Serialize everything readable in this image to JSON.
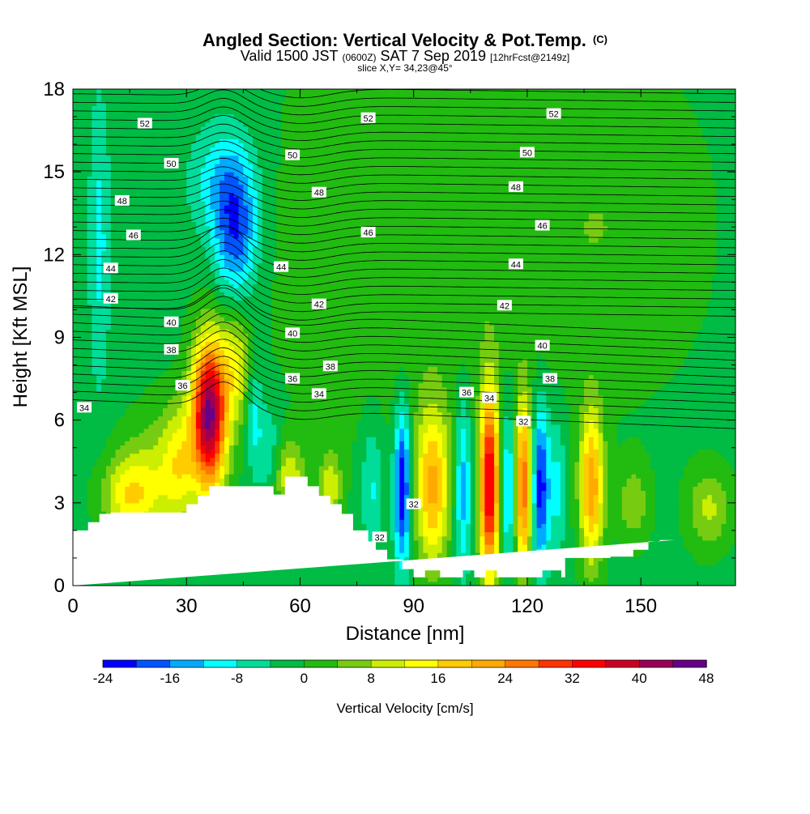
{
  "header": {
    "title_main": "Angled Section: Vertical Velocity & Pot.Temp.",
    "title_c": "(C)",
    "valid_a": "Valid 1500 JST",
    "valid_b": "(0600Z)",
    "valid_c": "SAT 7 Sep 2019",
    "valid_d": "[12hrFcst@2149z]",
    "slice": "slice X,Y= 34,23@45°"
  },
  "chart_data": {
    "type": "heatmap",
    "title": "Angled Section: Vertical Velocity & Pot.Temp.",
    "xlabel": "Distance [nm]",
    "ylabel": "Height [Kft MSL]",
    "xlim": [
      0,
      175
    ],
    "ylim": [
      0,
      18
    ],
    "x_ticks": [
      0,
      30,
      60,
      90,
      120,
      150
    ],
    "y_ticks": [
      0,
      3,
      6,
      9,
      12,
      15,
      18
    ],
    "grid": false,
    "colorbar": {
      "label": "Vertical Velocity [cm/s]",
      "min": -24,
      "max": 48,
      "step": 4,
      "tick_labels": [
        "-24",
        "-16",
        "-8",
        "0",
        "8",
        "16",
        "24",
        "32",
        "40",
        "48"
      ],
      "colors": [
        "#0000ff",
        "#0055ff",
        "#00aaff",
        "#00ffff",
        "#00dd99",
        "#00bb44",
        "#22bb11",
        "#77cc11",
        "#ccee00",
        "#ffff00",
        "#ffcc00",
        "#ffaa00",
        "#ff7700",
        "#ff3300",
        "#ff0000",
        "#cc0022",
        "#990055",
        "#660088"
      ]
    },
    "terrain_profile": {
      "x": [
        0,
        4,
        4,
        7,
        7,
        10,
        10,
        30,
        30,
        33,
        33,
        36,
        36,
        53,
        53,
        56,
        56,
        62,
        62,
        65,
        65,
        68,
        68,
        71,
        71,
        74,
        74,
        78,
        78,
        80,
        80,
        83,
        83,
        87,
        87,
        90,
        90,
        93,
        93,
        97,
        97,
        103,
        103,
        106,
        106,
        109,
        109,
        112,
        112,
        124,
        124,
        129,
        129,
        130,
        130,
        142,
        142,
        148,
        148,
        152,
        152,
        155,
        155,
        159,
        159,
        175
      ],
      "y": [
        2,
        2,
        2.3,
        2.3,
        2.6,
        2.6,
        2.65,
        2.65,
        2.95,
        2.95,
        3.25,
        3.25,
        3.6,
        3.6,
        3.3,
        3.3,
        3.95,
        3.95,
        3.6,
        3.6,
        3.25,
        3.25,
        2.95,
        2.95,
        2.6,
        2.6,
        2,
        2,
        1.6,
        1.6,
        1.3,
        1.3,
        0.95,
        0.95,
        0.6,
        0.6,
        0.3,
        0.3,
        0.55,
        0.55,
        0.3,
        0.3,
        0.55,
        0.55,
        0.3,
        0.3,
        0.55,
        0.55,
        0.3,
        0.3,
        0.55,
        0.55,
        0.3,
        0.3,
        1,
        1,
        1.05,
        1.05,
        1.3,
        1.3,
        1.6,
        1.6,
        1.65,
        1.65
      ]
    },
    "theta_labels": [
      {
        "text": "52",
        "x": 19,
        "y": 16.75
      },
      {
        "text": "52",
        "x": 78,
        "y": 16.95
      },
      {
        "text": "52",
        "x": 127,
        "y": 17.1
      },
      {
        "text": "50",
        "x": 26,
        "y": 15.3
      },
      {
        "text": "50",
        "x": 58,
        "y": 15.6
      },
      {
        "text": "50",
        "x": 120,
        "y": 15.7
      },
      {
        "text": "48",
        "x": 13,
        "y": 13.95
      },
      {
        "text": "48",
        "x": 65,
        "y": 14.25
      },
      {
        "text": "48",
        "x": 117,
        "y": 14.45
      },
      {
        "text": "46",
        "x": 16,
        "y": 12.7
      },
      {
        "text": "46",
        "x": 78,
        "y": 12.8
      },
      {
        "text": "46",
        "x": 124,
        "y": 13.05
      },
      {
        "text": "44",
        "x": 10,
        "y": 11.5
      },
      {
        "text": "44",
        "x": 55,
        "y": 11.55
      },
      {
        "text": "44",
        "x": 117,
        "y": 11.65
      },
      {
        "text": "42",
        "x": 10,
        "y": 10.4
      },
      {
        "text": "42",
        "x": 65,
        "y": 10.2
      },
      {
        "text": "42",
        "x": 114,
        "y": 10.15
      },
      {
        "text": "40",
        "x": 26,
        "y": 9.55
      },
      {
        "text": "40",
        "x": 58,
        "y": 9.15
      },
      {
        "text": "40",
        "x": 124,
        "y": 8.7
      },
      {
        "text": "38",
        "x": 26,
        "y": 8.55
      },
      {
        "text": "38",
        "x": 68,
        "y": 7.95
      },
      {
        "text": "38",
        "x": 126,
        "y": 7.5
      },
      {
        "text": "36",
        "x": 29,
        "y": 7.25
      },
      {
        "text": "36",
        "x": 58,
        "y": 7.5
      },
      {
        "text": "36",
        "x": 104,
        "y": 7.0
      },
      {
        "text": "34",
        "x": 3,
        "y": 6.45
      },
      {
        "text": "34",
        "x": 65,
        "y": 6.95
      },
      {
        "text": "34",
        "x": 110,
        "y": 6.8
      },
      {
        "text": "32",
        "x": 119,
        "y": 5.95
      },
      {
        "text": "32",
        "x": 90,
        "y": 2.95
      },
      {
        "text": "32",
        "x": 81,
        "y": 1.75
      }
    ],
    "velocity_features": [
      {
        "x": 36,
        "y": 6.2,
        "peak": 46,
        "sx": 3.2,
        "sy": 1.9
      },
      {
        "x": 43,
        "y": 8.0,
        "peak": 12,
        "sx": 3,
        "sy": 1.5
      },
      {
        "x": 28,
        "y": 4.5,
        "peak": 10,
        "sx": 3,
        "sy": 1.5
      },
      {
        "x": 15,
        "y": 3.3,
        "peak": 16,
        "sx": 5,
        "sy": 1.1
      },
      {
        "x": 24,
        "y": 4.2,
        "peak": 8,
        "sx": 6,
        "sy": 1.6
      },
      {
        "x": 43,
        "y": 12.8,
        "peak": -17,
        "sx": 4,
        "sy": 1.8
      },
      {
        "x": 39,
        "y": 14.7,
        "peak": -9,
        "sx": 6,
        "sy": 1.5
      },
      {
        "x": 7,
        "y": 12.5,
        "peak": -8,
        "sx": 2,
        "sy": 3.8
      },
      {
        "x": 48,
        "y": 6.2,
        "peak": -9,
        "sx": 1.5,
        "sy": 1.5
      },
      {
        "x": 52,
        "y": 4.8,
        "peak": -7,
        "sx": 2,
        "sy": 1.2
      },
      {
        "x": 57,
        "y": 4.0,
        "peak": 12,
        "sx": 3,
        "sy": 0.9
      },
      {
        "x": 68,
        "y": 3.6,
        "peak": 12,
        "sx": 2,
        "sy": 0.9
      },
      {
        "x": 79,
        "y": 3.6,
        "peak": -8,
        "sx": 2,
        "sy": 1.8
      },
      {
        "x": 87,
        "y": 3.6,
        "peak": -24,
        "sx": 1.5,
        "sy": 2.0
      },
      {
        "x": 95,
        "y": 3.6,
        "peak": 22,
        "sx": 3.2,
        "sy": 2.0
      },
      {
        "x": 103,
        "y": 3.6,
        "peak": -14,
        "sx": 1.5,
        "sy": 2.2
      },
      {
        "x": 110,
        "y": 3.6,
        "peak": 38,
        "sx": 1.8,
        "sy": 2.5
      },
      {
        "x": 115,
        "y": 3.6,
        "peak": -14,
        "sx": 1.3,
        "sy": 2.0
      },
      {
        "x": 119,
        "y": 3.6,
        "peak": 28,
        "sx": 1.6,
        "sy": 2.2
      },
      {
        "x": 123.5,
        "y": 3.6,
        "peak": -22,
        "sx": 1.6,
        "sy": 2.0
      },
      {
        "x": 128,
        "y": 3.6,
        "peak": -8,
        "sx": 1.5,
        "sy": 1.8
      },
      {
        "x": 137,
        "y": 3.6,
        "peak": 24,
        "sx": 2.2,
        "sy": 2.0
      },
      {
        "x": 148,
        "y": 3.0,
        "peak": 8,
        "sx": 3,
        "sy": 1.0
      },
      {
        "x": 168,
        "y": 2.8,
        "peak": 10,
        "sx": 4,
        "sy": 1.0
      },
      {
        "x": 85,
        "y": 12.5,
        "peak": 5,
        "sx": 22,
        "sy": 5
      },
      {
        "x": 140,
        "y": 13.0,
        "peak": 5,
        "sx": 18,
        "sy": 4
      }
    ]
  }
}
